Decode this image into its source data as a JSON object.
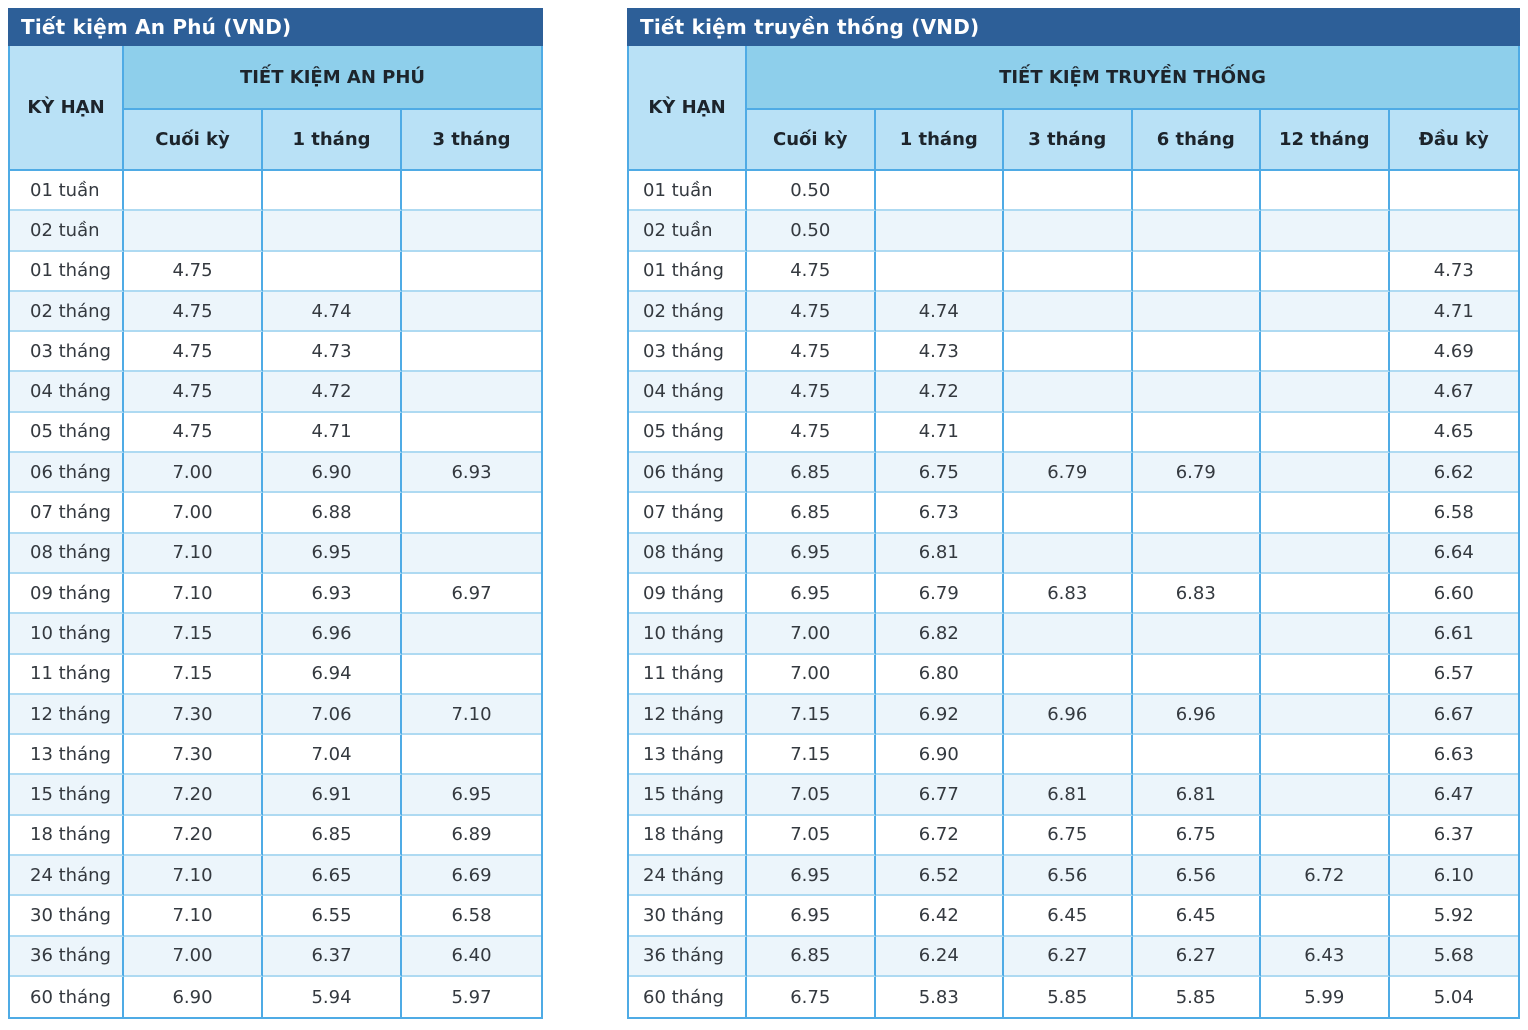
{
  "colors": {
    "title_bar_bg": "#2d5f98",
    "title_text": "#ffffff",
    "group_header_bg": "#8ecfeb",
    "subheader_bg": "#b9e1f6",
    "row_alt_bg": "#ecf5fb",
    "row_bg": "#ffffff",
    "border_strong": "#4fabe5",
    "border_light": "#aedaf2",
    "cell_text": "#34393f"
  },
  "chart_data": [
    {
      "type": "table",
      "title": "Tiết kiệm An Phú (VND)",
      "term_header": "KỲ HẠN",
      "group_header": "TIẾT KIỆM AN PHÚ",
      "columns": [
        "Cuối kỳ",
        "1 tháng",
        "3 tháng"
      ],
      "rows": [
        {
          "term": "01 tuần",
          "values": [
            "",
            "",
            ""
          ]
        },
        {
          "term": "02 tuần",
          "values": [
            "",
            "",
            ""
          ]
        },
        {
          "term": "01 tháng",
          "values": [
            "4.75",
            "",
            ""
          ]
        },
        {
          "term": "02 tháng",
          "values": [
            "4.75",
            "4.74",
            ""
          ]
        },
        {
          "term": "03 tháng",
          "values": [
            "4.75",
            "4.73",
            ""
          ]
        },
        {
          "term": "04 tháng",
          "values": [
            "4.75",
            "4.72",
            ""
          ]
        },
        {
          "term": "05 tháng",
          "values": [
            "4.75",
            "4.71",
            ""
          ]
        },
        {
          "term": "06 tháng",
          "values": [
            "7.00",
            "6.90",
            "6.93"
          ]
        },
        {
          "term": "07 tháng",
          "values": [
            "7.00",
            "6.88",
            ""
          ]
        },
        {
          "term": "08 tháng",
          "values": [
            "7.10",
            "6.95",
            ""
          ]
        },
        {
          "term": "09 tháng",
          "values": [
            "7.10",
            "6.93",
            "6.97"
          ]
        },
        {
          "term": "10 tháng",
          "values": [
            "7.15",
            "6.96",
            ""
          ]
        },
        {
          "term": "11 tháng",
          "values": [
            "7.15",
            "6.94",
            ""
          ]
        },
        {
          "term": "12 tháng",
          "values": [
            "7.30",
            "7.06",
            "7.10"
          ]
        },
        {
          "term": "13 tháng",
          "values": [
            "7.30",
            "7.04",
            ""
          ]
        },
        {
          "term": "15 tháng",
          "values": [
            "7.20",
            "6.91",
            "6.95"
          ]
        },
        {
          "term": "18 tháng",
          "values": [
            "7.20",
            "6.85",
            "6.89"
          ]
        },
        {
          "term": "24 tháng",
          "values": [
            "7.10",
            "6.65",
            "6.69"
          ]
        },
        {
          "term": "30 tháng",
          "values": [
            "7.10",
            "6.55",
            "6.58"
          ]
        },
        {
          "term": "36 tháng",
          "values": [
            "7.00",
            "6.37",
            "6.40"
          ]
        },
        {
          "term": "60 tháng",
          "values": [
            "6.90",
            "5.94",
            "5.97"
          ]
        }
      ]
    },
    {
      "type": "table",
      "title": "Tiết kiệm truyền thống (VND)",
      "term_header": "KỲ HẠN",
      "group_header": "TIẾT KIỆM TRUYỀN THỐNG",
      "columns": [
        "Cuối kỳ",
        "1 tháng",
        "3 tháng",
        "6 tháng",
        "12 tháng",
        "Đầu kỳ"
      ],
      "rows": [
        {
          "term": "01 tuần",
          "values": [
            "0.50",
            "",
            "",
            "",
            "",
            ""
          ]
        },
        {
          "term": "02 tuần",
          "values": [
            "0.50",
            "",
            "",
            "",
            "",
            ""
          ]
        },
        {
          "term": "01 tháng",
          "values": [
            "4.75",
            "",
            "",
            "",
            "",
            "4.73"
          ]
        },
        {
          "term": "02 tháng",
          "values": [
            "4.75",
            "4.74",
            "",
            "",
            "",
            "4.71"
          ]
        },
        {
          "term": "03 tháng",
          "values": [
            "4.75",
            "4.73",
            "",
            "",
            "",
            "4.69"
          ]
        },
        {
          "term": "04 tháng",
          "values": [
            "4.75",
            "4.72",
            "",
            "",
            "",
            "4.67"
          ]
        },
        {
          "term": "05 tháng",
          "values": [
            "4.75",
            "4.71",
            "",
            "",
            "",
            "4.65"
          ]
        },
        {
          "term": "06 tháng",
          "values": [
            "6.85",
            "6.75",
            "6.79",
            "6.79",
            "",
            "6.62"
          ]
        },
        {
          "term": "07 tháng",
          "values": [
            "6.85",
            "6.73",
            "",
            "",
            "",
            "6.58"
          ]
        },
        {
          "term": "08 tháng",
          "values": [
            "6.95",
            "6.81",
            "",
            "",
            "",
            "6.64"
          ]
        },
        {
          "term": "09 tháng",
          "values": [
            "6.95",
            "6.79",
            "6.83",
            "6.83",
            "",
            "6.60"
          ]
        },
        {
          "term": "10 tháng",
          "values": [
            "7.00",
            "6.82",
            "",
            "",
            "",
            "6.61"
          ]
        },
        {
          "term": "11 tháng",
          "values": [
            "7.00",
            "6.80",
            "",
            "",
            "",
            "6.57"
          ]
        },
        {
          "term": "12 tháng",
          "values": [
            "7.15",
            "6.92",
            "6.96",
            "6.96",
            "",
            "6.67"
          ]
        },
        {
          "term": "13 tháng",
          "values": [
            "7.15",
            "6.90",
            "",
            "",
            "",
            "6.63"
          ]
        },
        {
          "term": "15 tháng",
          "values": [
            "7.05",
            "6.77",
            "6.81",
            "6.81",
            "",
            "6.47"
          ]
        },
        {
          "term": "18 tháng",
          "values": [
            "7.05",
            "6.72",
            "6.75",
            "6.75",
            "",
            "6.37"
          ]
        },
        {
          "term": "24 tháng",
          "values": [
            "6.95",
            "6.52",
            "6.56",
            "6.56",
            "6.72",
            "6.10"
          ]
        },
        {
          "term": "30 tháng",
          "values": [
            "6.95",
            "6.42",
            "6.45",
            "6.45",
            "",
            "5.92"
          ]
        },
        {
          "term": "36 tháng",
          "values": [
            "6.85",
            "6.24",
            "6.27",
            "6.27",
            "6.43",
            "5.68"
          ]
        },
        {
          "term": "60 tháng",
          "values": [
            "6.75",
            "5.83",
            "5.85",
            "5.85",
            "5.99",
            "5.04"
          ]
        }
      ]
    }
  ]
}
